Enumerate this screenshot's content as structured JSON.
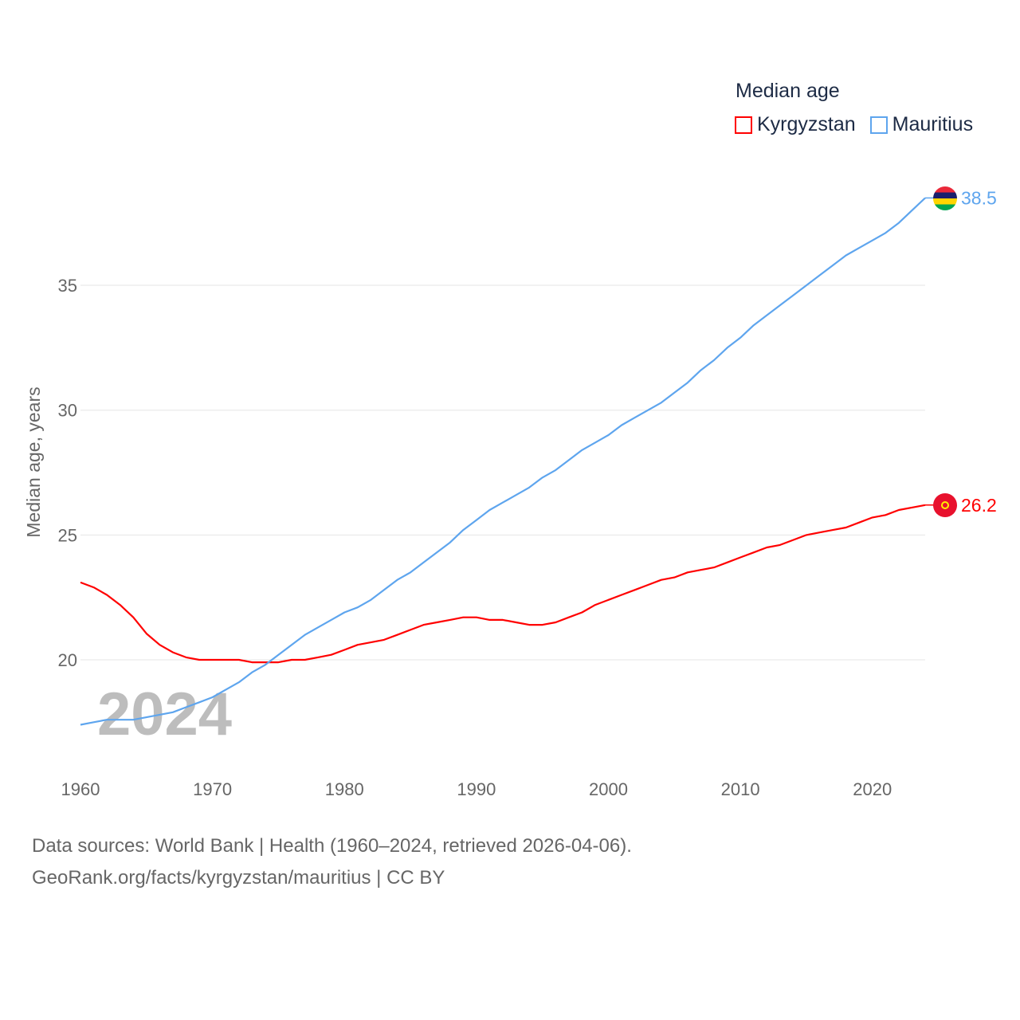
{
  "chart_data": {
    "type": "line",
    "title": "Median age",
    "xlabel": "",
    "ylabel": "Median age, years",
    "xlim": [
      1960,
      2024
    ],
    "ylim": [
      16.5,
      40
    ],
    "yticks": [
      20,
      25,
      30,
      35
    ],
    "xticks": [
      1960,
      1970,
      1980,
      1990,
      2000,
      2010,
      2020
    ],
    "grid": true,
    "legend_placement": "top-right",
    "year_watermark": "2024",
    "x": [
      1960,
      1961,
      1962,
      1963,
      1964,
      1965,
      1966,
      1967,
      1968,
      1969,
      1970,
      1971,
      1972,
      1973,
      1974,
      1975,
      1976,
      1977,
      1978,
      1979,
      1980,
      1981,
      1982,
      1983,
      1984,
      1985,
      1986,
      1987,
      1988,
      1989,
      1990,
      1991,
      1992,
      1993,
      1994,
      1995,
      1996,
      1997,
      1998,
      1999,
      2000,
      2001,
      2002,
      2003,
      2004,
      2005,
      2006,
      2007,
      2008,
      2009,
      2010,
      2011,
      2012,
      2013,
      2014,
      2015,
      2016,
      2017,
      2018,
      2019,
      2020,
      2021,
      2022,
      2023,
      2024
    ],
    "series": [
      {
        "name": "Kyrgyzstan",
        "color": "#ff0000",
        "end_label": "26.2",
        "values": [
          23.1,
          22.9,
          22.6,
          22.2,
          21.7,
          21.05,
          20.6,
          20.3,
          20.1,
          20.0,
          20.0,
          20.0,
          20.0,
          19.9,
          19.9,
          19.9,
          20.0,
          20.0,
          20.1,
          20.2,
          20.4,
          20.6,
          20.7,
          20.8,
          21.0,
          21.2,
          21.4,
          21.5,
          21.6,
          21.7,
          21.7,
          21.6,
          21.6,
          21.5,
          21.4,
          21.4,
          21.5,
          21.7,
          21.9,
          22.2,
          22.4,
          22.6,
          22.8,
          23.0,
          23.2,
          23.3,
          23.5,
          23.6,
          23.7,
          23.9,
          24.1,
          24.3,
          24.5,
          24.6,
          24.8,
          25.0,
          25.1,
          25.2,
          25.3,
          25.5,
          25.7,
          25.8,
          26.0,
          26.1,
          26.2
        ]
      },
      {
        "name": "Mauritius",
        "color": "#5ea5ee",
        "end_label": "38.5",
        "values": [
          17.4,
          17.5,
          17.6,
          17.6,
          17.6,
          17.7,
          17.8,
          17.9,
          18.1,
          18.3,
          18.5,
          18.8,
          19.1,
          19.5,
          19.8,
          20.2,
          20.6,
          21.0,
          21.3,
          21.6,
          21.9,
          22.1,
          22.4,
          22.8,
          23.2,
          23.5,
          23.9,
          24.3,
          24.7,
          25.2,
          25.6,
          26.0,
          26.3,
          26.6,
          26.9,
          27.3,
          27.6,
          28.0,
          28.4,
          28.7,
          29.0,
          29.4,
          29.7,
          30.0,
          30.3,
          30.7,
          31.1,
          31.6,
          32.0,
          32.5,
          32.9,
          33.4,
          33.8,
          34.2,
          34.6,
          35.0,
          35.4,
          35.8,
          36.2,
          36.5,
          36.8,
          37.1,
          37.5,
          38.0,
          38.5
        ]
      }
    ]
  },
  "footer": {
    "line1": "Data sources: World Bank | Health (1960–2024, retrieved 2026-04-06).",
    "line2": "GeoRank.org/facts/kyrgyzstan/mauritius | CC BY"
  }
}
